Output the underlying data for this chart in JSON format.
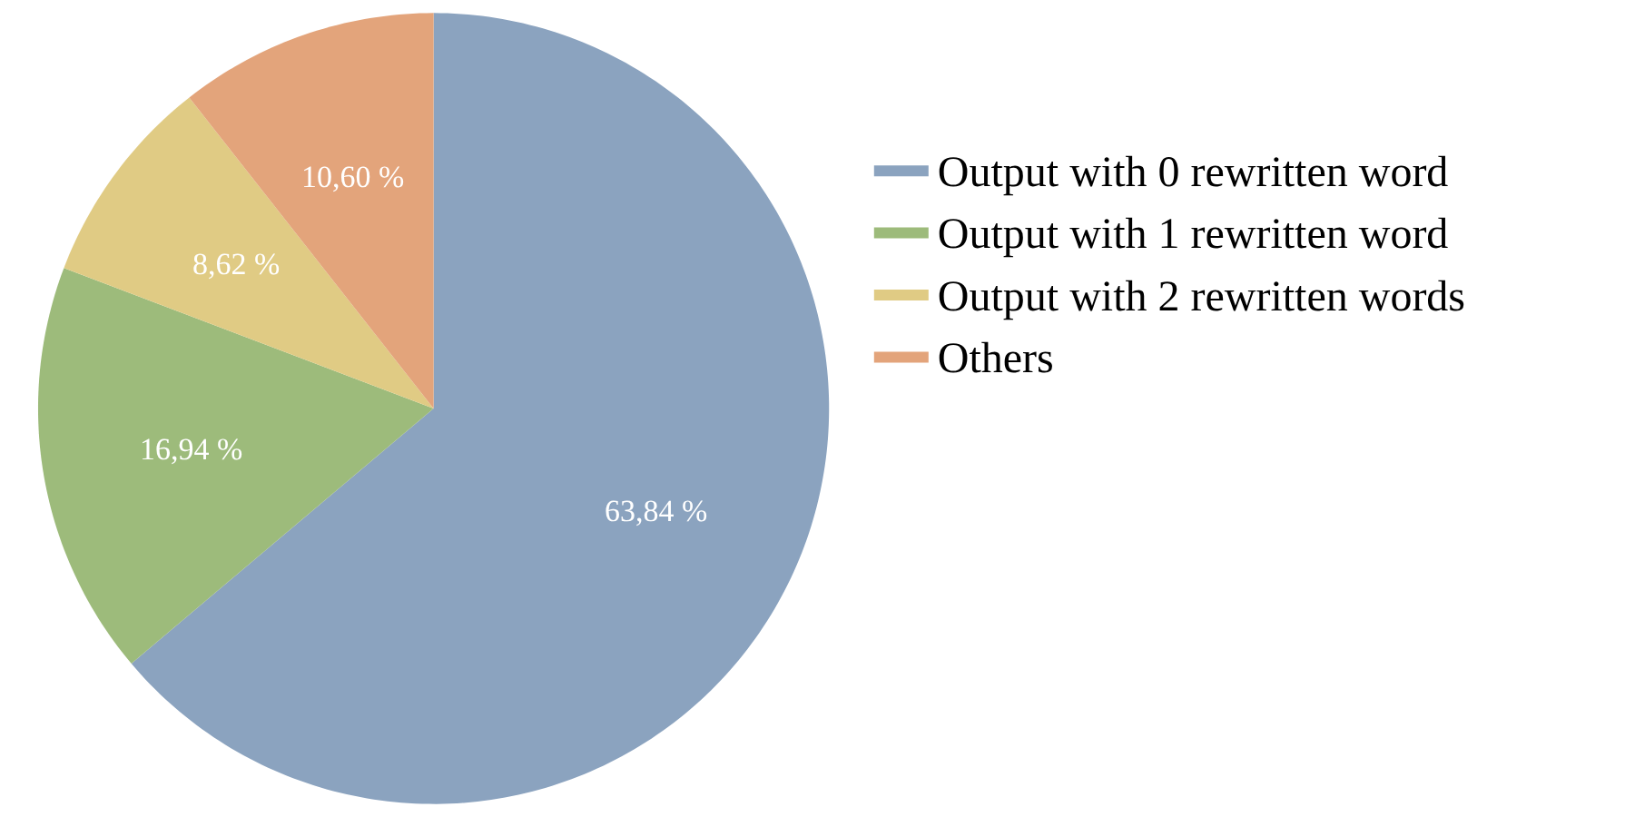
{
  "chart_data": {
    "type": "pie",
    "categories": [
      "Output with 0 rewritten word",
      "Output with 1 rewritten word",
      "Output with 2 rewritten words",
      "Others"
    ],
    "values": [
      63.84,
      16.94,
      8.62,
      10.6
    ],
    "value_labels": [
      "63,84 %",
      "16,94 %",
      "8,62 %",
      "10,60 %"
    ],
    "colors": [
      "#8ba3bf",
      "#9dbb7b",
      "#e0cb84",
      "#e3a47b"
    ],
    "legend": "right"
  }
}
